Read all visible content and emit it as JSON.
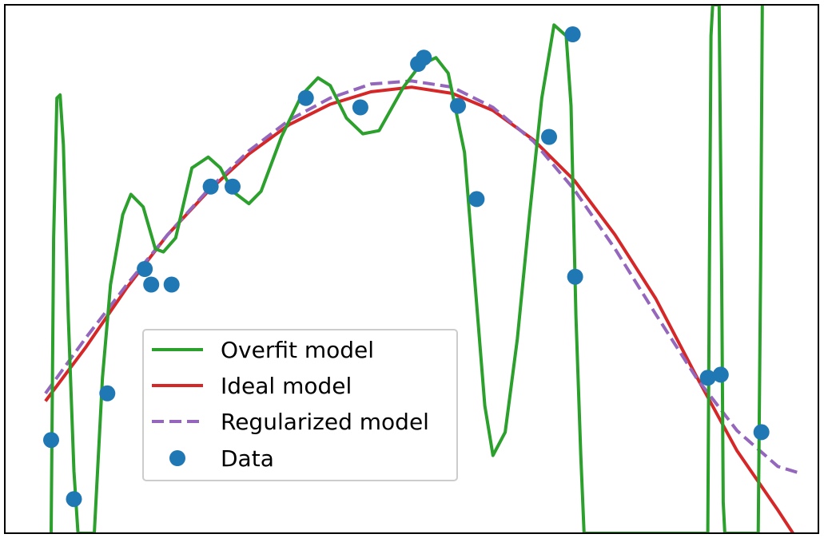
{
  "chart_data": {
    "type": "line",
    "title": "",
    "xlabel": "",
    "ylabel": "",
    "xlim": [
      0,
      1
    ],
    "ylim": [
      -1.7,
      1.7
    ],
    "grid": false,
    "axes_ticks_visible": false,
    "legend": {
      "placement": "lower-left",
      "entries": [
        {
          "label": "Overfit model",
          "kind": "line",
          "color": "#2ca02c"
        },
        {
          "label": "Ideal model",
          "kind": "line",
          "color": "#d62728"
        },
        {
          "label": "Regularized model",
          "kind": "dashed-line",
          "color": "#9467bd"
        },
        {
          "label": "Data",
          "kind": "marker",
          "color": "#1f77b4"
        }
      ]
    },
    "series": [
      {
        "name": "Overfit model",
        "kind": "line",
        "color": "#2ca02c",
        "x": [
          0.057,
          0.06,
          0.064,
          0.068,
          0.072,
          0.078,
          0.085,
          0.09,
          0.11,
          0.12,
          0.13,
          0.145,
          0.155,
          0.17,
          0.185,
          0.195,
          0.21,
          0.23,
          0.25,
          0.265,
          0.28,
          0.3,
          0.315,
          0.34,
          0.365,
          0.385,
          0.4,
          0.42,
          0.44,
          0.46,
          0.475,
          0.49,
          0.51,
          0.53,
          0.545,
          0.565,
          0.59,
          0.6,
          0.615,
          0.63,
          0.645,
          0.66,
          0.675,
          0.69,
          0.696,
          0.702,
          0.708,
          0.712,
          0.864,
          0.866,
          0.868,
          0.87,
          0.878,
          0.881,
          0.883,
          0.885,
          0.926,
          0.929,
          0.931
        ],
        "y": [
          -1.7,
          0.2,
          1.1,
          1.12,
          0.8,
          -0.3,
          -1.3,
          -1.7,
          -1.7,
          -0.7,
          -0.1,
          0.35,
          0.48,
          0.4,
          0.13,
          0.11,
          0.2,
          0.65,
          0.72,
          0.65,
          0.5,
          0.42,
          0.5,
          0.85,
          1.12,
          1.23,
          1.18,
          0.97,
          0.87,
          0.89,
          1.03,
          1.17,
          1.31,
          1.36,
          1.26,
          0.75,
          -0.88,
          -1.2,
          -1.05,
          -0.45,
          0.35,
          1.1,
          1.57,
          1.5,
          1.05,
          -0.3,
          -1.2,
          -1.7,
          -1.7,
          0.0,
          1.5,
          1.7,
          1.7,
          0.0,
          -1.5,
          -1.7,
          -1.7,
          0.0,
          1.7
        ]
      },
      {
        "name": "Ideal model",
        "kind": "line",
        "color": "#d62728",
        "x": [
          0.05,
          0.1,
          0.15,
          0.2,
          0.25,
          0.3,
          0.35,
          0.4,
          0.45,
          0.5,
          0.55,
          0.6,
          0.65,
          0.7,
          0.75,
          0.8,
          0.85,
          0.9,
          0.95,
          0.975
        ],
        "y": [
          -0.85,
          -0.5,
          -0.12,
          0.22,
          0.5,
          0.74,
          0.93,
          1.06,
          1.14,
          1.17,
          1.13,
          1.02,
          0.83,
          0.57,
          0.22,
          -0.19,
          -0.69,
          -1.17,
          -1.55,
          -1.75
        ]
      },
      {
        "name": "Regularized model",
        "kind": "dashed-line",
        "color": "#9467bd",
        "x": [
          0.05,
          0.1,
          0.15,
          0.2,
          0.25,
          0.3,
          0.35,
          0.4,
          0.45,
          0.5,
          0.55,
          0.6,
          0.65,
          0.7,
          0.75,
          0.8,
          0.85,
          0.9,
          0.95,
          0.975
        ],
        "y": [
          -0.8,
          -0.44,
          -0.1,
          0.22,
          0.51,
          0.76,
          0.96,
          1.1,
          1.19,
          1.21,
          1.17,
          1.04,
          0.82,
          0.51,
          0.13,
          -0.29,
          -0.7,
          -1.04,
          -1.27,
          -1.31
        ]
      }
    ],
    "scatter": {
      "name": "Data",
      "color": "#1f77b4",
      "points": [
        {
          "x": 0.057,
          "y": -1.1
        },
        {
          "x": 0.085,
          "y": -1.48
        },
        {
          "x": 0.126,
          "y": -0.8
        },
        {
          "x": 0.172,
          "y": 0.0
        },
        {
          "x": 0.18,
          "y": -0.1
        },
        {
          "x": 0.205,
          "y": -0.1
        },
        {
          "x": 0.253,
          "y": 0.53
        },
        {
          "x": 0.28,
          "y": 0.53
        },
        {
          "x": 0.37,
          "y": 1.1
        },
        {
          "x": 0.437,
          "y": 1.04
        },
        {
          "x": 0.508,
          "y": 1.32
        },
        {
          "x": 0.515,
          "y": 1.36
        },
        {
          "x": 0.557,
          "y": 1.05
        },
        {
          "x": 0.58,
          "y": 0.45
        },
        {
          "x": 0.669,
          "y": 0.85
        },
        {
          "x": 0.698,
          "y": 1.51
        },
        {
          "x": 0.701,
          "y": -0.05
        },
        {
          "x": 0.864,
          "y": -0.7
        },
        {
          "x": 0.88,
          "y": -0.68
        },
        {
          "x": 0.93,
          "y": -1.05
        }
      ]
    }
  }
}
